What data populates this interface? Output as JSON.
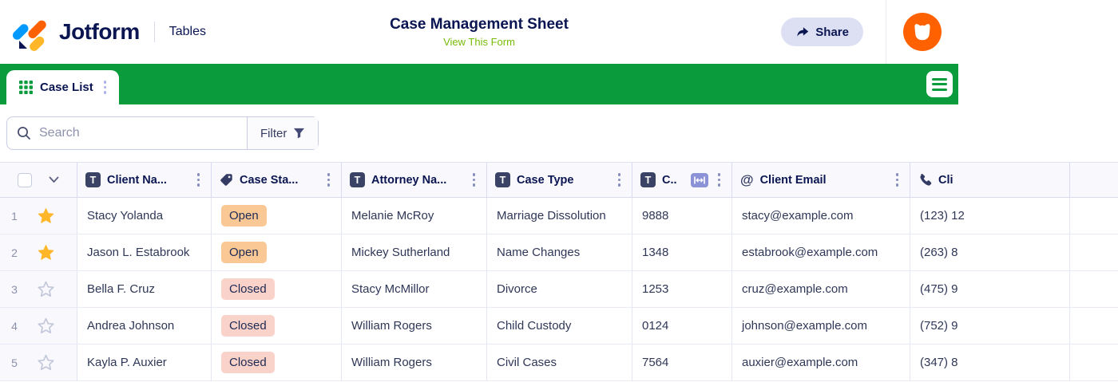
{
  "header": {
    "brand": "Jotform",
    "product": "Tables",
    "title": "Case Management Sheet",
    "view_form_link": "View This Form",
    "share_label": "Share",
    "avatar_icon": "podo-avatar-icon"
  },
  "tabbar": {
    "tab_label": "Case List",
    "tab_icon": "grid-table-icon",
    "menu_icon": "hamburger-icon"
  },
  "toolbar": {
    "search_placeholder": "Search",
    "search_icon": "search-icon",
    "filter_label": "Filter",
    "filter_icon": "funnel-icon"
  },
  "table": {
    "columns": [
      {
        "label": "Client Na...",
        "icon": "text-field-icon",
        "menu": true
      },
      {
        "label": "Case Sta...",
        "icon": "tag-icon",
        "menu": true
      },
      {
        "label": "Attorney Na...",
        "icon": "text-field-icon",
        "menu": true
      },
      {
        "label": "Case Type",
        "icon": "text-field-icon",
        "menu": true
      },
      {
        "label": "C..",
        "icon": "text-field-icon",
        "menu": true,
        "resize_badge": true
      },
      {
        "label": "Client Email",
        "icon": "email-icon",
        "menu": true
      },
      {
        "label": "Cli",
        "icon": "phone-icon",
        "menu": false
      }
    ],
    "rows": [
      {
        "num": "1",
        "starred": true,
        "client_name": "Stacy Yolanda",
        "case_status": "Open",
        "attorney_name": "Melanie McRoy",
        "case_type": "Marriage Dissolution",
        "case_number": "9888",
        "client_email": "stacy@example.com",
        "client_phone": "(123) 12"
      },
      {
        "num": "2",
        "starred": true,
        "client_name": "Jason L. Estabrook",
        "case_status": "Open",
        "attorney_name": "Mickey Sutherland",
        "case_type": "Name Changes",
        "case_number": "1348",
        "client_email": "estabrook@example.com",
        "client_phone": "(263) 8"
      },
      {
        "num": "3",
        "starred": false,
        "client_name": "Bella F. Cruz",
        "case_status": "Closed",
        "attorney_name": "Stacy McMillor",
        "case_type": "Divorce",
        "case_number": "1253",
        "client_email": "cruz@example.com",
        "client_phone": "(475) 9"
      },
      {
        "num": "4",
        "starred": false,
        "client_name": "Andrea Johnson",
        "case_status": "Closed",
        "attorney_name": "William Rogers",
        "case_type": "Child Custody",
        "case_number": "0124",
        "client_email": "johnson@example.com",
        "client_phone": "(752) 9"
      },
      {
        "num": "5",
        "starred": false,
        "client_name": "Kayla P. Auxier",
        "case_status": "Closed",
        "attorney_name": "William Rogers",
        "case_type": "Civil Cases",
        "case_number": "7564",
        "client_email": "auxier@example.com",
        "client_phone": "(347) 8"
      }
    ]
  },
  "colors": {
    "brand_green": "#0a9b3d",
    "link_green": "#78bb07",
    "navy": "#0a1551",
    "brand_orange": "#ff6100",
    "logo_blue": "#0099ff",
    "logo_amber": "#ffb629",
    "star_gold": "#ffb629",
    "status_open_bg": "#f9c894",
    "status_closed_bg": "#f9d2c9",
    "share_btn_bg": "#dde0f3"
  }
}
